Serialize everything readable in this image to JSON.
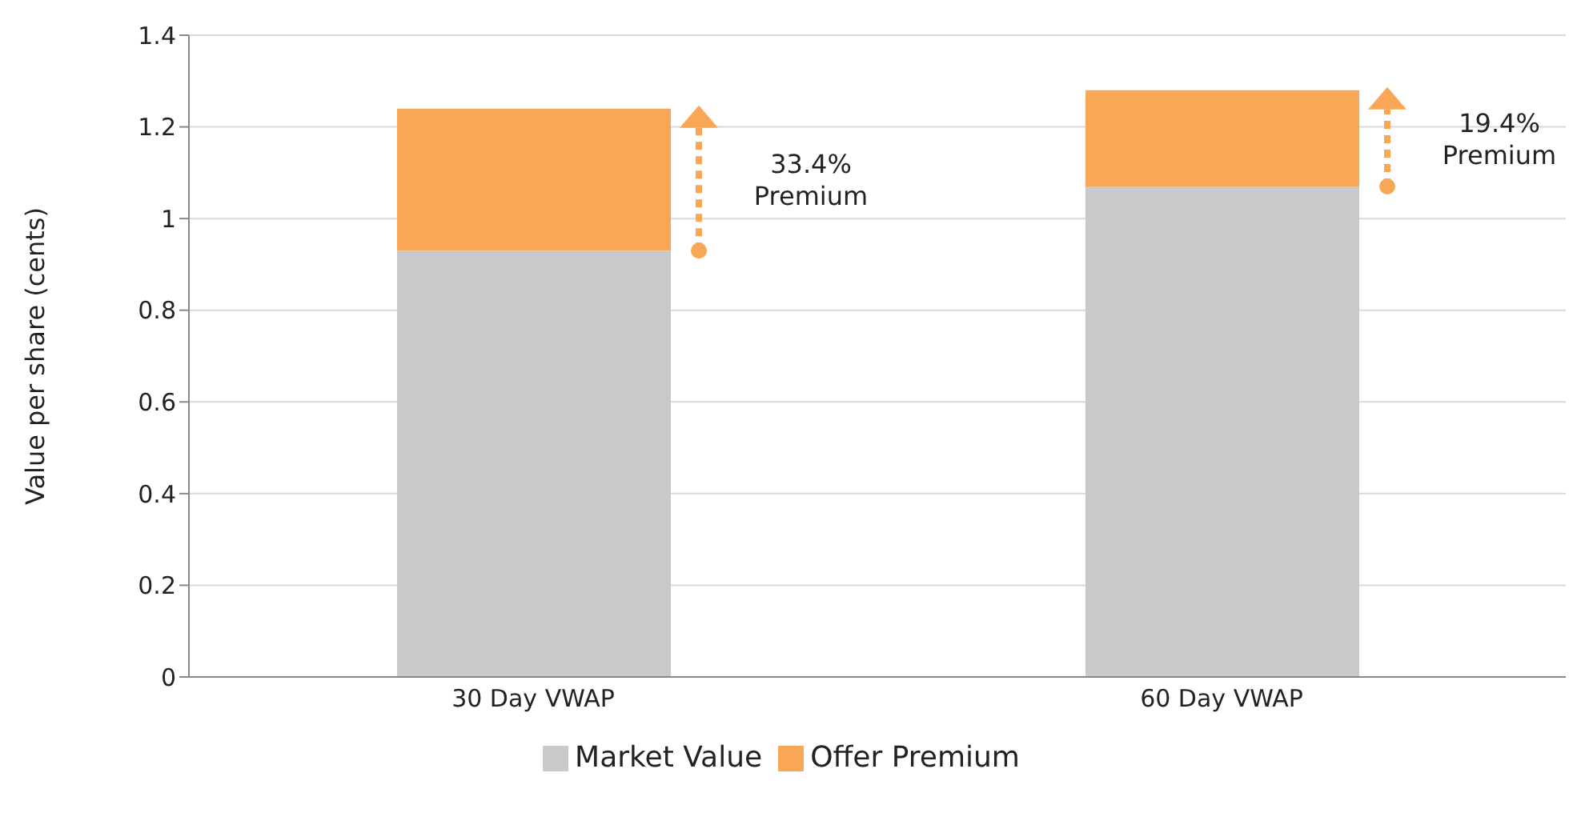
{
  "chart_data": {
    "type": "bar",
    "stacked": true,
    "categories": [
      "30 Day VWAP",
      "60 Day VWAP"
    ],
    "series": [
      {
        "name": "Market Value",
        "color": "#c8c9cb",
        "values": [
          0.93,
          1.07
        ]
      },
      {
        "name": "Offer Premium",
        "color": "#f8a757",
        "values": [
          0.31,
          0.21
        ]
      }
    ],
    "ylabel": "Value per share (cents)",
    "ylim": [
      0,
      1.4
    ],
    "yticks": [
      0,
      0.2,
      0.4,
      0.6,
      0.8,
      1,
      1.2,
      1.4
    ],
    "grid": "y",
    "legend": "bottom",
    "annotations": [
      "33.4%\nPremium",
      "19.4%\nPremium"
    ]
  }
}
